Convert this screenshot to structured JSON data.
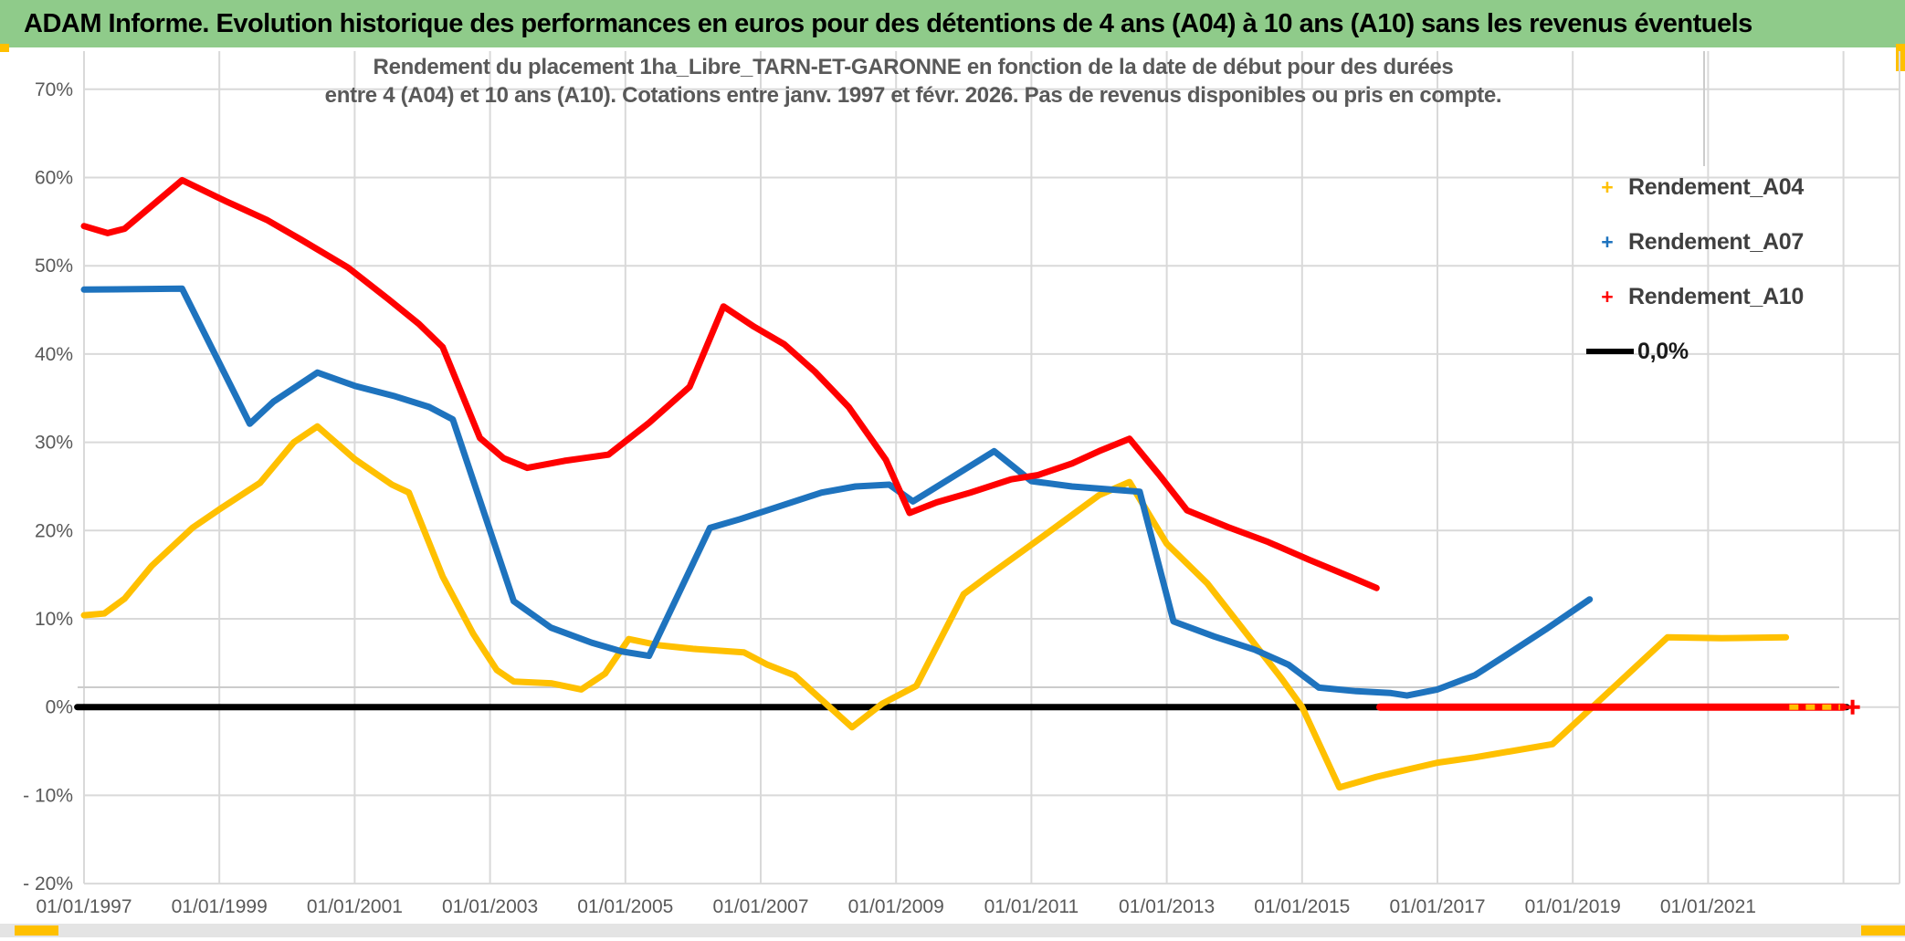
{
  "header": {
    "title": "ADAM Informe. Evolution historique des performances en euros pour des détentions de 4 ans (A04) à 10 ans (A10) sans les revenus éventuels"
  },
  "chart_data": {
    "type": "line",
    "title_lines": [
      "Rendement du placement 1ha_Libre_TARN-ET-GARONNE en fonction de la date de début pour des durées",
      "entre 4 (A04) et 10 ans (A10). Cotations entre janv. 1997 et févr. 2026. Pas de revenus disponibles ou pris en compte."
    ],
    "grid": true,
    "x_axis": {
      "tick_labels": [
        "01/01/1997",
        "01/01/1999",
        "01/01/2001",
        "01/01/2003",
        "01/01/2005",
        "01/01/2007",
        "01/01/2009",
        "01/01/2011",
        "01/01/2013",
        "01/01/2015",
        "01/01/2017",
        "01/01/2019",
        "01/01/2021"
      ],
      "tick_years": [
        1997,
        1999,
        2001,
        2003,
        2005,
        2007,
        2009,
        2011,
        2013,
        2015,
        2017,
        2019,
        2021
      ],
      "gridline_years": [
        1997,
        1999,
        2001,
        2003,
        2005,
        2007,
        2009,
        2011,
        2013,
        2015,
        2017,
        2019,
        2021,
        2023
      ],
      "range_years": [
        1996.9,
        2023.9
      ]
    },
    "y_axis": {
      "tick_values": [
        70,
        60,
        50,
        40,
        30,
        20,
        10,
        0,
        -10,
        -20
      ],
      "tick_labels": [
        "70%",
        "60%",
        "50%",
        "40%",
        "30%",
        "20%",
        "10%",
        "0%",
        "- 10%",
        "- 20%"
      ],
      "range": [
        -20,
        70
      ]
    },
    "legend": {
      "position": "right",
      "items": [
        {
          "label": "Rendement_A04",
          "color": "#FFC000",
          "marker": "plus"
        },
        {
          "label": "Rendement_A07",
          "color": "#1E73BE",
          "marker": "plus"
        },
        {
          "label": "Rendement_A10",
          "color": "#FF0000",
          "marker": "plus"
        },
        {
          "label": "0,0%",
          "color": "#000000",
          "marker": "line"
        }
      ]
    },
    "series": [
      {
        "name": "Rendement_A04",
        "color": "#FFC000",
        "points": [
          [
            1997.0,
            10.4
          ],
          [
            1997.3,
            10.6
          ],
          [
            1997.6,
            12.3
          ],
          [
            1998.0,
            16.0
          ],
          [
            1998.6,
            20.3
          ],
          [
            1999.0,
            22.4
          ],
          [
            1999.6,
            25.4
          ],
          [
            2000.1,
            30.0
          ],
          [
            2000.45,
            31.8
          ],
          [
            2001.0,
            28.1
          ],
          [
            2001.55,
            25.2
          ],
          [
            2001.8,
            24.3
          ],
          [
            2002.3,
            14.8
          ],
          [
            2002.75,
            8.3
          ],
          [
            2003.1,
            4.2
          ],
          [
            2003.35,
            2.9
          ],
          [
            2003.9,
            2.7
          ],
          [
            2004.35,
            2.0
          ],
          [
            2004.7,
            3.8
          ],
          [
            2005.05,
            7.7
          ],
          [
            2005.5,
            7.0
          ],
          [
            2006.0,
            6.6
          ],
          [
            2006.75,
            6.2
          ],
          [
            2007.1,
            4.8
          ],
          [
            2007.5,
            3.6
          ],
          [
            2008.35,
            -2.3
          ],
          [
            2008.8,
            0.4
          ],
          [
            2009.3,
            2.4
          ],
          [
            2010.0,
            12.8
          ],
          [
            2010.35,
            14.8
          ],
          [
            2011.2,
            19.5
          ],
          [
            2012.0,
            24.0
          ],
          [
            2012.45,
            25.5
          ],
          [
            2013.0,
            18.5
          ],
          [
            2013.6,
            14.0
          ],
          [
            2014.7,
            3.2
          ],
          [
            2015.0,
            0.0
          ],
          [
            2015.55,
            -9.1
          ],
          [
            2016.1,
            -7.9
          ],
          [
            2017.0,
            -6.3
          ],
          [
            2017.55,
            -5.7
          ],
          [
            2018.7,
            -4.2
          ],
          [
            2020.4,
            7.9
          ],
          [
            2021.2,
            7.8
          ],
          [
            2022.15,
            7.9
          ]
        ],
        "zero_segment": [
          2022.2,
          2022.95
        ]
      },
      {
        "name": "Rendement_A07",
        "color": "#1E73BE",
        "points": [
          [
            1997.0,
            47.3
          ],
          [
            1997.8,
            47.35
          ],
          [
            1998.45,
            47.4
          ],
          [
            1999.45,
            32.1
          ],
          [
            1999.8,
            34.6
          ],
          [
            2000.45,
            37.9
          ],
          [
            2001.0,
            36.4
          ],
          [
            2001.6,
            35.2
          ],
          [
            2002.1,
            34.0
          ],
          [
            2002.45,
            32.6
          ],
          [
            2003.35,
            12.0
          ],
          [
            2003.9,
            9.0
          ],
          [
            2004.5,
            7.3
          ],
          [
            2004.95,
            6.3
          ],
          [
            2005.35,
            5.8
          ],
          [
            2006.25,
            20.3
          ],
          [
            2006.7,
            21.3
          ],
          [
            2007.3,
            22.8
          ],
          [
            2007.9,
            24.3
          ],
          [
            2008.4,
            25.0
          ],
          [
            2008.9,
            25.2
          ],
          [
            2009.25,
            23.3
          ],
          [
            2009.8,
            25.9
          ],
          [
            2010.45,
            29.0
          ],
          [
            2011.0,
            25.6
          ],
          [
            2011.6,
            25.0
          ],
          [
            2012.1,
            24.7
          ],
          [
            2012.6,
            24.4
          ],
          [
            2013.1,
            9.7
          ],
          [
            2013.7,
            8.0
          ],
          [
            2014.3,
            6.5
          ],
          [
            2014.8,
            4.8
          ],
          [
            2015.25,
            2.2
          ],
          [
            2015.8,
            1.8
          ],
          [
            2016.3,
            1.6
          ],
          [
            2016.55,
            1.3
          ],
          [
            2017.0,
            2.0
          ],
          [
            2017.55,
            3.6
          ],
          [
            2018.0,
            5.8
          ],
          [
            2018.6,
            8.8
          ],
          [
            2019.25,
            12.2
          ]
        ],
        "zero_segment": null
      },
      {
        "name": "Rendement_A10",
        "color": "#FF0000",
        "points": [
          [
            1997.0,
            54.5
          ],
          [
            1997.35,
            53.7
          ],
          [
            1997.6,
            54.2
          ],
          [
            1998.45,
            59.7
          ],
          [
            1999.1,
            57.3
          ],
          [
            1999.7,
            55.2
          ],
          [
            2000.2,
            53.0
          ],
          [
            2000.9,
            49.8
          ],
          [
            2001.5,
            46.2
          ],
          [
            2001.95,
            43.4
          ],
          [
            2002.3,
            40.8
          ],
          [
            2002.85,
            30.5
          ],
          [
            2003.2,
            28.2
          ],
          [
            2003.55,
            27.1
          ],
          [
            2004.1,
            27.9
          ],
          [
            2004.75,
            28.6
          ],
          [
            2005.35,
            32.2
          ],
          [
            2005.95,
            36.3
          ],
          [
            2006.45,
            45.4
          ],
          [
            2006.9,
            43.1
          ],
          [
            2007.35,
            41.1
          ],
          [
            2007.8,
            38.0
          ],
          [
            2008.3,
            34.0
          ],
          [
            2008.85,
            28.0
          ],
          [
            2009.2,
            22.0
          ],
          [
            2009.6,
            23.2
          ],
          [
            2010.1,
            24.3
          ],
          [
            2010.7,
            25.8
          ],
          [
            2011.1,
            26.3
          ],
          [
            2011.6,
            27.6
          ],
          [
            2012.0,
            29.0
          ],
          [
            2012.45,
            30.4
          ],
          [
            2012.9,
            26.2
          ],
          [
            2013.3,
            22.3
          ],
          [
            2013.9,
            20.4
          ],
          [
            2014.5,
            18.7
          ],
          [
            2015.1,
            16.7
          ],
          [
            2015.7,
            14.8
          ],
          [
            2016.1,
            13.5
          ]
        ],
        "zero_segment": [
          2016.15,
          2023.0
        ],
        "end_marker": "plus"
      },
      {
        "name": "0,0%",
        "color": "#000000",
        "points": [
          [
            1996.9,
            0.0
          ],
          [
            2023.05,
            0.0
          ]
        ],
        "zero_segment": null
      }
    ]
  },
  "colors": {
    "header_bg": "#8FCB8A",
    "gridline": "#D9D9D9",
    "artifact_line": "#CCCCCC",
    "axis_text": "#595959",
    "accent_yellow": "#FFC000"
  }
}
